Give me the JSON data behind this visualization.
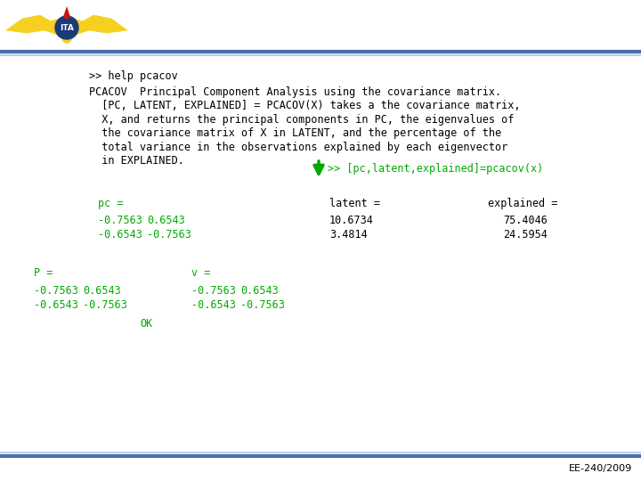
{
  "background_color": "#ffffff",
  "header_line_top_color": "#5b7fbb",
  "header_line_bot_color": "#aec4e0",
  "footer_line_top_color": "#aec4e0",
  "footer_line_bot_color": "#5b7fbb",
  "green_color": "#00aa00",
  "black_color": "#000000",
  "footer_text": "EE-240/2009",
  "command_line": ">> help pcacov",
  "help_text_lines": [
    "PCACOV  Principal Component Analysis using the covariance matrix.",
    "  [PC, LATENT, EXPLAINED] = PCACOV(X) takes a the covariance matrix,",
    "  X, and returns the principal components in PC, the eigenvalues of",
    "  the covariance matrix of X in LATENT, and the percentage of the",
    "  total variance in the observations explained by each eigenvector",
    "  in EXPLAINED."
  ],
  "green_command": ">> [pc,latent,explained]=pcacov(x)",
  "pc_label": "pc =",
  "latent_label": "latent =",
  "explained_label": "explained =",
  "pc_row1": [
    "-0.7563",
    "0.6543"
  ],
  "pc_row2": [
    "-0.6543",
    "-0.7563"
  ],
  "latent_values": [
    "10.6734",
    "3.4814"
  ],
  "explained_values": [
    "75.4046",
    "24.5954"
  ],
  "p_label": "P =",
  "v_label": "v =",
  "pv_row1": [
    "-0.7563",
    "0.6543",
    "-0.7563",
    "0.6543"
  ],
  "pv_row2": [
    "-0.6543",
    "-0.7563",
    "-0.6543",
    "-0.7563"
  ],
  "ok_text": "OK",
  "logo_yellow": "#f5d020",
  "logo_blue": "#1a3a7a",
  "logo_red": "#cc1111"
}
